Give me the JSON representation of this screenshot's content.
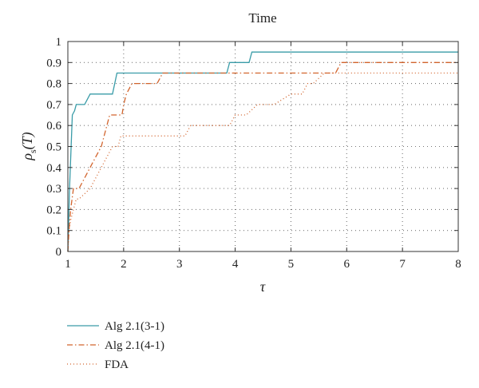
{
  "chart_data": {
    "type": "line",
    "title": "Time",
    "xlabel": "τ",
    "ylabel_main": "ρ",
    "ylabel_sub": "s",
    "ylabel_arg": "(T)",
    "xlim": [
      1,
      8
    ],
    "ylim": [
      0,
      1
    ],
    "x_ticks": [
      1,
      2,
      3,
      4,
      5,
      6,
      7,
      8
    ],
    "x_tick_labels": [
      "1",
      "2",
      "3",
      "4",
      "5",
      "6",
      "7",
      "8"
    ],
    "y_ticks": [
      0,
      0.1,
      0.2,
      0.3,
      0.4,
      0.5,
      0.6,
      0.7,
      0.8,
      0.9,
      1
    ],
    "y_tick_labels": [
      "0",
      "0.1",
      "0.2",
      "0.3",
      "0.4",
      "0.5",
      "0.6",
      "0.7",
      "0.8",
      "0.9",
      "1"
    ],
    "grid": true,
    "legend_position": "below-left",
    "series": [
      {
        "name": "Alg 2.1(3-1)",
        "color": "#3a9ca8",
        "dash": "solid",
        "x": [
          1.0,
          1.03,
          1.08,
          1.12,
          1.15,
          1.2,
          1.3,
          1.4,
          1.6,
          1.8,
          1.88,
          2.0,
          2.5,
          3.0,
          3.5,
          3.85,
          3.9,
          4.2,
          4.25,
          4.3,
          5.0,
          6.0,
          7.0,
          8.0
        ],
        "y": [
          0.0,
          0.3,
          0.65,
          0.67,
          0.7,
          0.7,
          0.7,
          0.75,
          0.75,
          0.75,
          0.85,
          0.85,
          0.85,
          0.85,
          0.85,
          0.85,
          0.9,
          0.9,
          0.9,
          0.95,
          0.95,
          0.95,
          0.95,
          0.95
        ]
      },
      {
        "name": "Alg 2.1(4-1)",
        "color": "#d2642d",
        "dash": "dashdot",
        "x": [
          1.0,
          1.02,
          1.05,
          1.1,
          1.2,
          1.3,
          1.4,
          1.5,
          1.6,
          1.7,
          1.75,
          1.9,
          1.97,
          2.0,
          2.05,
          2.15,
          2.2,
          2.6,
          2.7,
          3.0,
          4.0,
          5.0,
          5.8,
          5.9,
          6.0,
          7.0,
          8.0
        ],
        "y": [
          0.0,
          0.1,
          0.2,
          0.3,
          0.3,
          0.35,
          0.4,
          0.45,
          0.5,
          0.6,
          0.65,
          0.65,
          0.65,
          0.7,
          0.75,
          0.8,
          0.8,
          0.8,
          0.85,
          0.85,
          0.85,
          0.85,
          0.85,
          0.9,
          0.9,
          0.9,
          0.9
        ]
      },
      {
        "name": "FDA",
        "color": "#d2642d",
        "dash": "dotted",
        "x": [
          1.0,
          1.02,
          1.05,
          1.1,
          1.15,
          1.2,
          1.4,
          1.5,
          1.6,
          1.7,
          1.8,
          1.9,
          1.95,
          2.0,
          2.5,
          3.0,
          3.1,
          3.2,
          3.6,
          3.9,
          4.0,
          4.1,
          4.2,
          4.4,
          4.6,
          4.7,
          5.0,
          5.1,
          5.2,
          5.3,
          5.4,
          5.6,
          5.7,
          6.0,
          6.5,
          7.0,
          8.0
        ],
        "y": [
          0.0,
          0.1,
          0.15,
          0.2,
          0.25,
          0.25,
          0.3,
          0.35,
          0.4,
          0.45,
          0.5,
          0.5,
          0.55,
          0.55,
          0.55,
          0.55,
          0.55,
          0.6,
          0.6,
          0.6,
          0.65,
          0.65,
          0.65,
          0.7,
          0.7,
          0.7,
          0.75,
          0.75,
          0.75,
          0.8,
          0.8,
          0.85,
          0.85,
          0.85,
          0.85,
          0.85,
          0.85
        ]
      }
    ]
  }
}
